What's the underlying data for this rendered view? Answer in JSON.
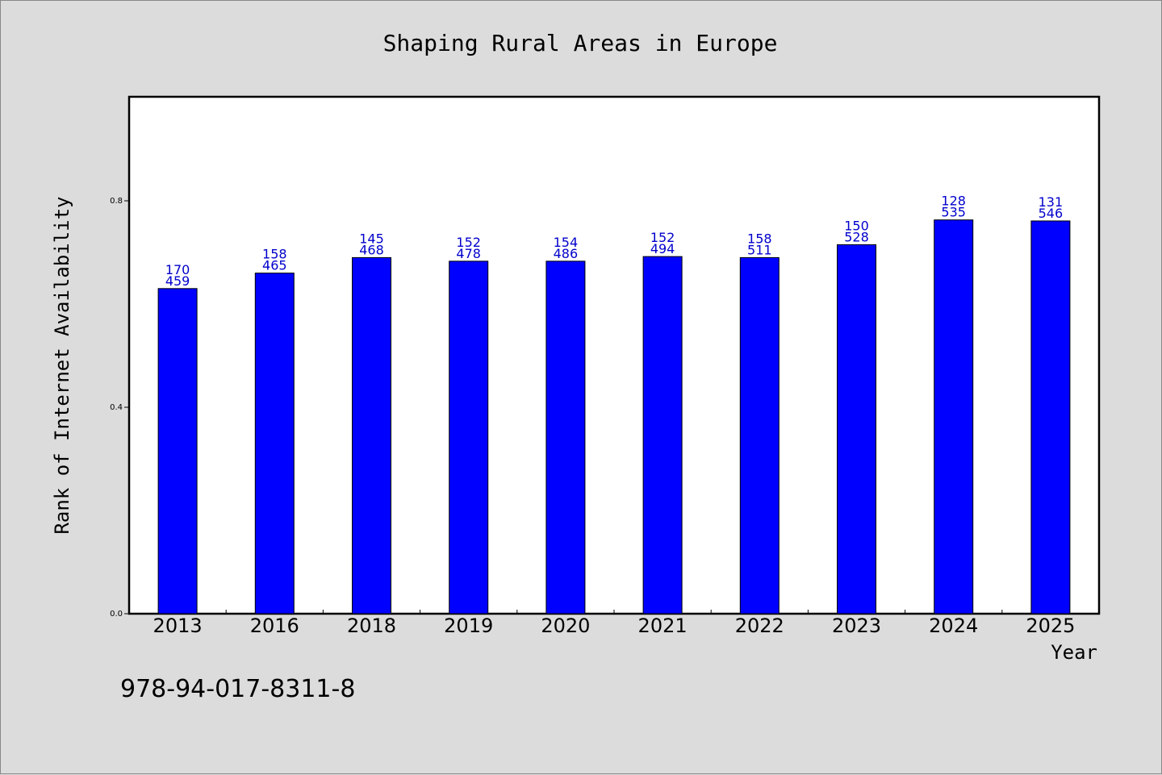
{
  "chart_data": {
    "type": "bar",
    "title": "Shaping Rural Areas in Europe",
    "xlabel": "Year",
    "ylabel": "Rank of Internet Availability",
    "categories": [
      "2013",
      "2016",
      "2018",
      "2019",
      "2020",
      "2021",
      "2022",
      "2023",
      "2024",
      "2025"
    ],
    "values": [
      0.63,
      0.66,
      0.69,
      0.683,
      0.683,
      0.692,
      0.69,
      0.715,
      0.763,
      0.761
    ],
    "data_labels": [
      [
        "170",
        "459"
      ],
      [
        "158",
        "465"
      ],
      [
        "145",
        "468"
      ],
      [
        "152",
        "478"
      ],
      [
        "154",
        "486"
      ],
      [
        "152",
        "494"
      ],
      [
        "158",
        "511"
      ],
      [
        "150",
        "528"
      ],
      [
        "128",
        "535"
      ],
      [
        "131",
        "546"
      ]
    ],
    "ylim": [
      0,
      1.0
    ],
    "yticks": [
      "0.0",
      "0.4",
      "0.8"
    ],
    "ytick_values": [
      0,
      0.4,
      0.8
    ],
    "grid": false,
    "bar_color": "#0000ff",
    "label_color": "#0000cc"
  },
  "footer": {
    "isbn": "978-94-017-8311-8"
  }
}
